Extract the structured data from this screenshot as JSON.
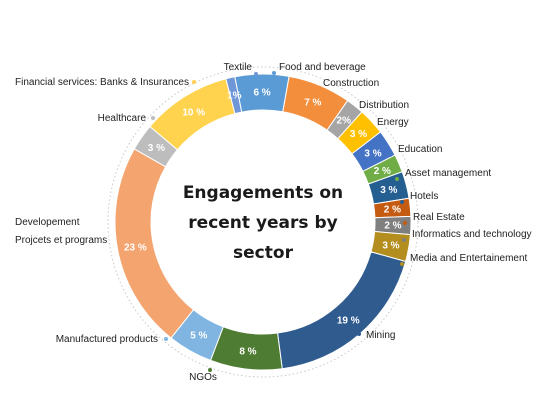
{
  "chart_data": {
    "type": "pie",
    "title": "Engagements on recent years by sector",
    "title_lines": [
      "Engagements on",
      "recent years by",
      "sector"
    ],
    "unit": "%",
    "categories": [
      "Food and beverage",
      "Construction",
      "Distribution",
      "Energy",
      "Education",
      "Asset management",
      "Hotels",
      "Real Estate",
      "Informatics and technology",
      "Media and Entertainement",
      "Mining",
      "NGOs",
      "Manufactured products",
      "Developement\nProjcets et programs",
      "Healthcare",
      "Financial services: Banks & Insurances",
      "Textile"
    ],
    "values": [
      6,
      7,
      2,
      3,
      3,
      2,
      3,
      2,
      2,
      3,
      19,
      8,
      5,
      23,
      3,
      10,
      1
    ],
    "value_labels": [
      "6 %",
      "7 %",
      "2%",
      "3 %",
      "3 %",
      "2 %",
      "3 %",
      "2 %",
      "2 %",
      "3 %",
      "19 %",
      "8 %",
      "5 %",
      "23 %",
      "3 %",
      "10 %",
      "1%"
    ],
    "colors": [
      "#5b9bd5",
      "#f28e3c",
      "#a5a5a5",
      "#ffc000",
      "#4472c4",
      "#70ad47",
      "#255e91",
      "#c55a11",
      "#7f7f7f",
      "#b38d1e",
      "#2f5b8f",
      "#4e7c32",
      "#7fb5e0",
      "#f4a46e",
      "#bdbdbd",
      "#ffd34d",
      "#6f96d6"
    ],
    "legend": "outside labels with leader dots"
  }
}
